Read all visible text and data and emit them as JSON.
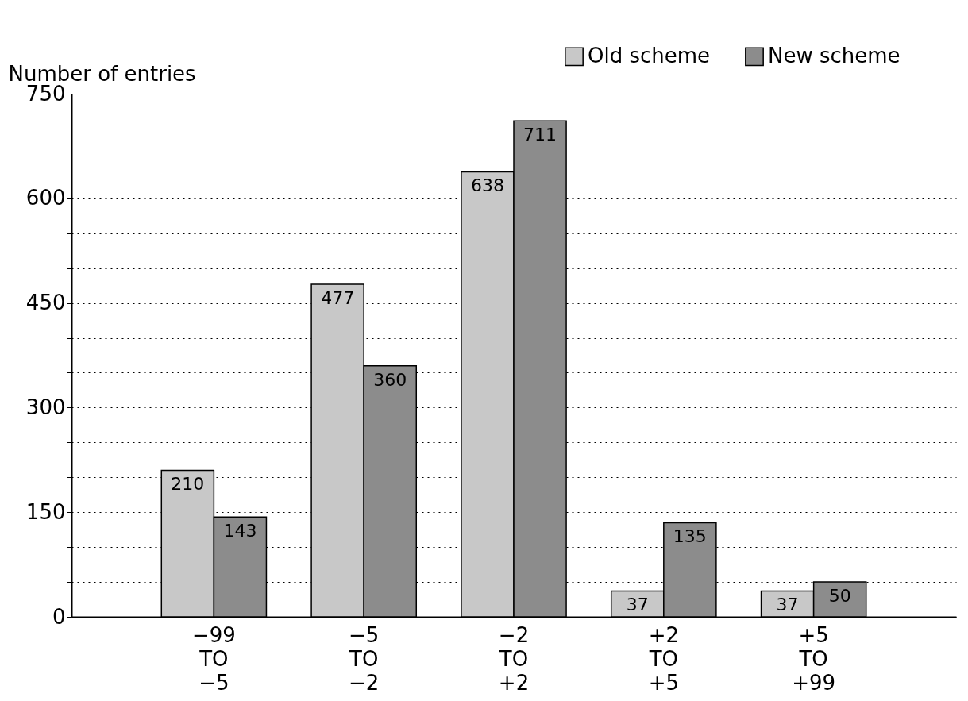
{
  "chart_data": {
    "type": "bar",
    "ylabel": "Number of entries",
    "categories": [
      "−99 TO −5",
      "−5 TO −2",
      "−2 TO +2",
      "+2 TO +5",
      "+5 TO +99"
    ],
    "series": [
      {
        "name": "Old scheme",
        "color": "#c8c8c8",
        "values": [
          210,
          477,
          638,
          37,
          37
        ]
      },
      {
        "name": "New scheme",
        "color": "#8c8c8c",
        "values": [
          143,
          360,
          711,
          135,
          50
        ]
      }
    ],
    "ylim": [
      0,
      750
    ],
    "yticks": [
      0,
      {
        "value": 50,
        "label": null
      },
      {
        "value": 100,
        "label": null
      },
      150,
      {
        "value": 200,
        "label": null
      },
      {
        "value": 250,
        "label": null
      },
      300,
      {
        "value": 350,
        "label": null
      },
      {
        "value": 400,
        "label": null
      },
      450,
      {
        "value": 500,
        "label": null
      },
      {
        "value": 550,
        "label": null
      },
      600,
      {
        "value": 650,
        "label": null
      },
      {
        "value": 700,
        "label": null
      },
      750
    ],
    "grid": "y",
    "legend": "top right",
    "data_labels": true
  }
}
